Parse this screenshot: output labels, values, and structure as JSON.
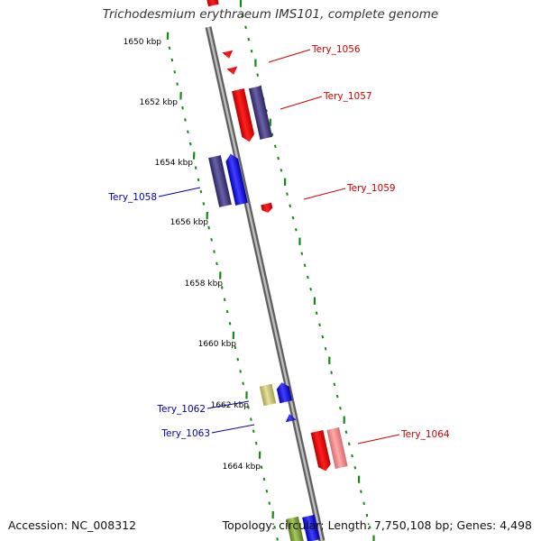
{
  "title": "Trichodesmium erythraeum IMS101, complete genome",
  "footer": {
    "accession": "Accession: NC_008312",
    "topology": "Topology: circular; Length: 7,750,108 bp; Genes: 4,498"
  },
  "colors": {
    "ticks": "#148a14",
    "backbone": "#8c8c8c",
    "label_forward": "#cc0000",
    "label_reverse": "#0000aa",
    "gene_red": "#ee0000",
    "gene_light_red": "#ee7777",
    "gene_purple": "#3d3585",
    "gene_blue": "#0a0aee",
    "gene_tan": "#c4bd6a",
    "gene_olive": "#7a9a30"
  },
  "kbp_labels": [
    "1650 kbp",
    "1652 kbp",
    "1654 kbp",
    "1656 kbp",
    "1658 kbp",
    "1660 kbp",
    "1662 kbp",
    "1664 kbp"
  ],
  "gene_labels": [
    {
      "name": "Tery_1056",
      "strand": "forward"
    },
    {
      "name": "Tery_1057",
      "strand": "forward"
    },
    {
      "name": "Tery_1058",
      "strand": "reverse"
    },
    {
      "name": "Tery_1059",
      "strand": "forward"
    },
    {
      "name": "Tery_1062",
      "strand": "reverse"
    },
    {
      "name": "Tery_1063",
      "strand": "reverse"
    },
    {
      "name": "Tery_1064",
      "strand": "forward"
    }
  ]
}
